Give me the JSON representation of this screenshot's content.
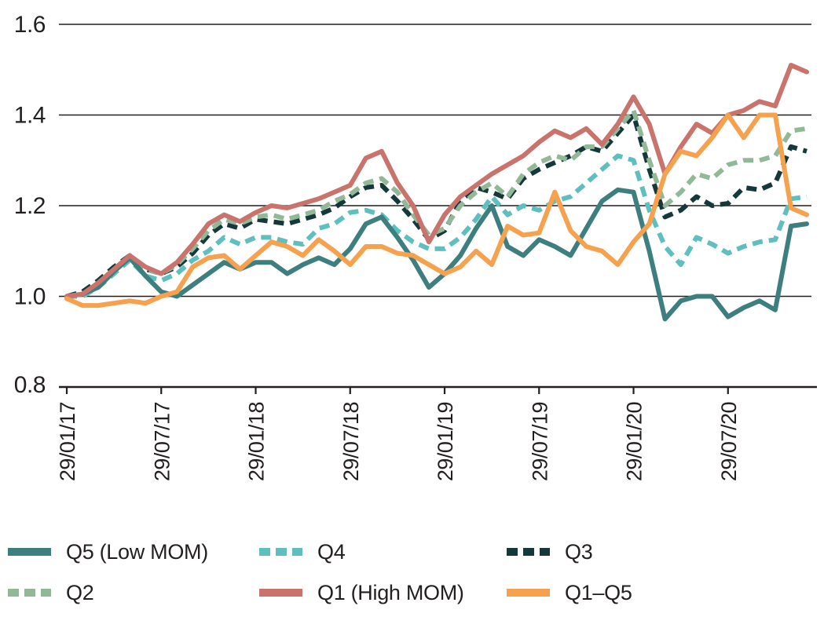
{
  "chart_data": {
    "type": "line",
    "title": "",
    "xlabel": "",
    "ylabel": "",
    "ylim": [
      0.8,
      1.6
    ],
    "grid": "horizontal",
    "legend_position": "bottom",
    "y_ticks": [
      {
        "label": "1.6",
        "value": 1.6
      },
      {
        "label": "1.4",
        "value": 1.4
      },
      {
        "label": "1.2",
        "value": 1.2
      },
      {
        "label": "1.0",
        "value": 1.0
      },
      {
        "label": "0.8",
        "value": 0.8
      }
    ],
    "gridline_values": [
      1.6,
      1.4,
      1.2,
      1.0
    ],
    "x_ticks": [
      {
        "label": "29/01/17",
        "index": 0
      },
      {
        "label": "29/07/17",
        "index": 6
      },
      {
        "label": "29/01/18",
        "index": 12
      },
      {
        "label": "29/07/18",
        "index": 18
      },
      {
        "label": "29/01/19",
        "index": 24
      },
      {
        "label": "29/07/19",
        "index": 30
      },
      {
        "label": "29/01/20",
        "index": 36
      },
      {
        "label": "29/07/20",
        "index": 42
      }
    ],
    "points_per_series": 48,
    "x_frequency": "monthly",
    "draw_order": [
      "q3",
      "q2",
      "q4",
      "q5",
      "q1",
      "q1q5"
    ],
    "series": [
      {
        "id": "q5",
        "label": "Q5 (Low MOM)",
        "color": "#3c7f7e",
        "style": "solid",
        "values": [
          1.0,
          1.005,
          1.02,
          1.055,
          1.085,
          1.045,
          1.01,
          1.0,
          1.025,
          1.05,
          1.075,
          1.06,
          1.075,
          1.075,
          1.05,
          1.07,
          1.085,
          1.07,
          1.105,
          1.16,
          1.175,
          1.13,
          1.08,
          1.02,
          1.05,
          1.09,
          1.15,
          1.2,
          1.11,
          1.09,
          1.125,
          1.11,
          1.09,
          1.15,
          1.21,
          1.235,
          1.23,
          1.1,
          0.95,
          0.99,
          1.0,
          1.0,
          0.955,
          0.975,
          0.99,
          0.97,
          1.155,
          1.16
        ]
      },
      {
        "id": "q4",
        "label": "Q4",
        "color": "#5fbebe",
        "style": "dashed",
        "values": [
          1.0,
          1.0,
          1.02,
          1.05,
          1.08,
          1.045,
          1.035,
          1.05,
          1.08,
          1.1,
          1.13,
          1.115,
          1.13,
          1.13,
          1.12,
          1.115,
          1.15,
          1.16,
          1.185,
          1.19,
          1.18,
          1.145,
          1.12,
          1.105,
          1.105,
          1.13,
          1.17,
          1.22,
          1.18,
          1.2,
          1.19,
          1.21,
          1.22,
          1.25,
          1.28,
          1.31,
          1.3,
          1.19,
          1.11,
          1.07,
          1.13,
          1.115,
          1.095,
          1.11,
          1.12,
          1.125,
          1.215,
          1.22
        ]
      },
      {
        "id": "q3",
        "label": "Q3",
        "color": "#15393a",
        "style": "dashed",
        "values": [
          1.0,
          1.01,
          1.035,
          1.065,
          1.09,
          1.06,
          1.05,
          1.065,
          1.095,
          1.135,
          1.16,
          1.15,
          1.17,
          1.165,
          1.16,
          1.17,
          1.18,
          1.195,
          1.22,
          1.24,
          1.245,
          1.21,
          1.17,
          1.125,
          1.145,
          1.21,
          1.24,
          1.23,
          1.215,
          1.26,
          1.28,
          1.295,
          1.31,
          1.33,
          1.32,
          1.36,
          1.4,
          1.28,
          1.175,
          1.19,
          1.22,
          1.2,
          1.205,
          1.24,
          1.235,
          1.25,
          1.33,
          1.32
        ]
      },
      {
        "id": "q2",
        "label": "Q2",
        "color": "#92b997",
        "style": "dashed",
        "values": [
          1.0,
          1.005,
          1.025,
          1.055,
          1.085,
          1.06,
          1.05,
          1.07,
          1.105,
          1.145,
          1.17,
          1.16,
          1.175,
          1.18,
          1.17,
          1.18,
          1.19,
          1.21,
          1.225,
          1.25,
          1.26,
          1.23,
          1.18,
          1.135,
          1.15,
          1.2,
          1.23,
          1.25,
          1.22,
          1.27,
          1.295,
          1.31,
          1.3,
          1.33,
          1.33,
          1.37,
          1.41,
          1.3,
          1.2,
          1.23,
          1.27,
          1.26,
          1.29,
          1.3,
          1.3,
          1.31,
          1.365,
          1.37
        ]
      },
      {
        "id": "q1",
        "label": "Q1 (High MOM)",
        "color": "#c9736c",
        "style": "solid",
        "values": [
          1.0,
          1.005,
          1.03,
          1.06,
          1.09,
          1.065,
          1.05,
          1.075,
          1.115,
          1.16,
          1.18,
          1.165,
          1.185,
          1.2,
          1.195,
          1.205,
          1.215,
          1.23,
          1.245,
          1.305,
          1.32,
          1.25,
          1.2,
          1.12,
          1.18,
          1.22,
          1.245,
          1.27,
          1.29,
          1.31,
          1.34,
          1.365,
          1.35,
          1.37,
          1.335,
          1.38,
          1.44,
          1.38,
          1.27,
          1.33,
          1.38,
          1.36,
          1.4,
          1.41,
          1.43,
          1.42,
          1.51,
          1.495
        ]
      },
      {
        "id": "q1q5",
        "label": "Q1–Q5",
        "color": "#f6a14e",
        "style": "solid",
        "values": [
          0.995,
          0.98,
          0.98,
          0.985,
          0.99,
          0.985,
          1.0,
          1.01,
          1.065,
          1.085,
          1.09,
          1.06,
          1.09,
          1.12,
          1.11,
          1.09,
          1.125,
          1.1,
          1.07,
          1.11,
          1.11,
          1.095,
          1.09,
          1.07,
          1.05,
          1.065,
          1.1,
          1.07,
          1.155,
          1.135,
          1.14,
          1.23,
          1.145,
          1.11,
          1.1,
          1.07,
          1.12,
          1.16,
          1.27,
          1.32,
          1.31,
          1.35,
          1.4,
          1.35,
          1.4,
          1.4,
          1.195,
          1.18
        ]
      }
    ]
  },
  "colors": {
    "axis": "#231f20",
    "background": "#ffffff"
  }
}
